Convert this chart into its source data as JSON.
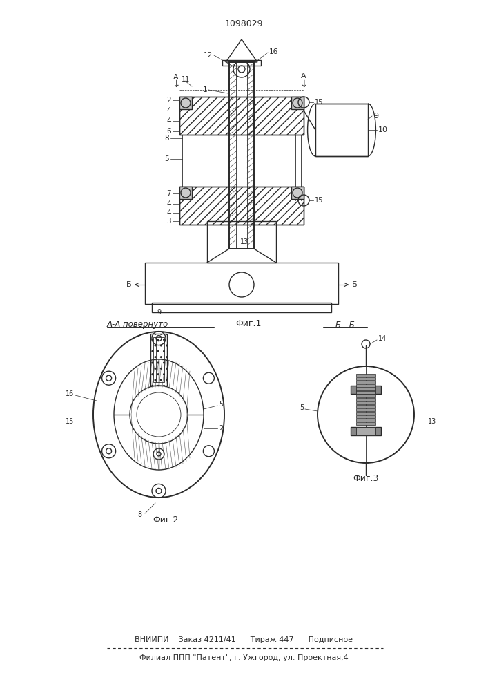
{
  "patent_number": "1098029",
  "background_color": "#ffffff",
  "line_color": "#2a2a2a",
  "fig_width": 7.07,
  "fig_height": 10.0,
  "dpi": 100,
  "footer_line1": "ВНИИПИ    Заказ 4211/41      Тираж 447      Подписное",
  "footer_line2": "Филиал ППП \"Патент\", г. Ужгород, ул. Проектная,4",
  "fig1_label": "Фиг.1",
  "fig2_label": "Фиг.2",
  "fig3_label": "Фиг.3",
  "section_aa": "А-А повернуто",
  "section_bb": "Б - Б"
}
